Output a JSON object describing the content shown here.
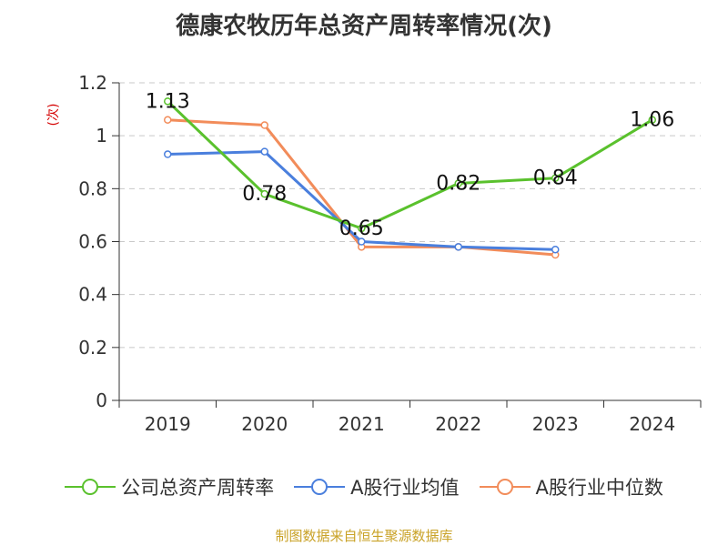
{
  "chart_data": {
    "type": "line",
    "title": "德康农牧历年总资产周转率情况(次)",
    "ylabel": "(次)",
    "xlabel": "",
    "categories": [
      "2019",
      "2020",
      "2021",
      "2022",
      "2023",
      "2024"
    ],
    "ylim": [
      0,
      1.2
    ],
    "yticks": [
      "0",
      "0.2",
      "0.4",
      "0.6",
      "0.8",
      "1",
      "1.2"
    ],
    "grid": true,
    "legend_position": "bottom",
    "series": [
      {
        "name": "公司总资产周转率",
        "color": "#5ac12d",
        "values": [
          1.13,
          0.78,
          0.65,
          0.82,
          0.84,
          1.06
        ],
        "labels": [
          "1.13",
          "0.78",
          "0.65",
          "0.82",
          "0.84",
          "1.06"
        ]
      },
      {
        "name": "A股行业均值",
        "color": "#4a7fdd",
        "values": [
          0.93,
          0.94,
          0.6,
          0.58,
          0.57,
          null
        ]
      },
      {
        "name": "A股行业中位数",
        "color": "#f28c5a",
        "values": [
          1.06,
          1.04,
          0.58,
          0.58,
          0.55,
          null
        ]
      }
    ]
  },
  "source": "制图数据来自恒生聚源数据库"
}
